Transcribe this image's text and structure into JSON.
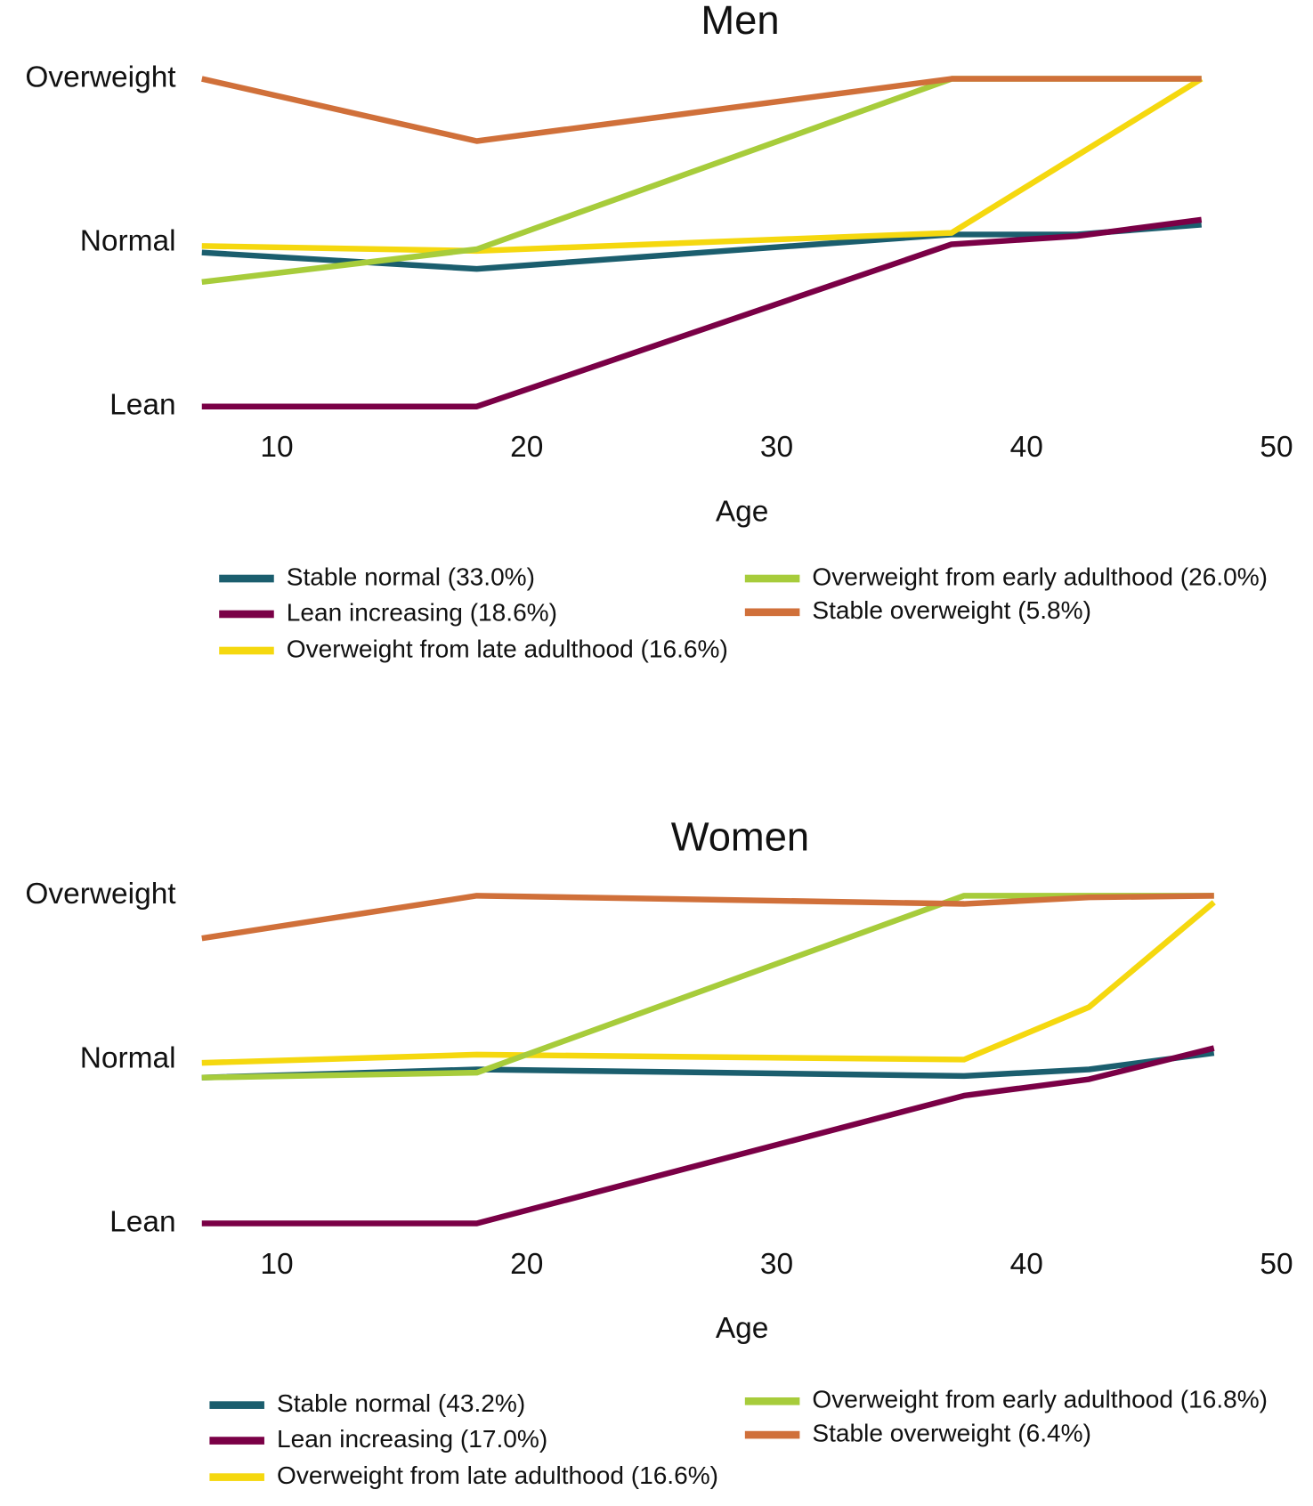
{
  "chart_data": [
    {
      "type": "line",
      "title": "Men",
      "x_label": "Age",
      "x": [
        7,
        18,
        37,
        42,
        47
      ],
      "xlim": [
        7,
        50
      ],
      "xticks": [
        10,
        20,
        30,
        40,
        50
      ],
      "ylim": [
        1,
        3
      ],
      "yticks": [
        {
          "value": 1,
          "label": "Lean"
        },
        {
          "value": 2,
          "label": "Normal"
        },
        {
          "value": 3,
          "label": "Overweight"
        }
      ],
      "series": [
        {
          "name": "Stable normal (33.0%)",
          "color": "#1b5e6e",
          "values": [
            1.94,
            1.84,
            2.05,
            2.05,
            2.11
          ]
        },
        {
          "name": "Lean increasing (18.6%)",
          "color": "#7a0046",
          "values": [
            1,
            1,
            1.99,
            2.04,
            2.14
          ]
        },
        {
          "name": "Overweight from late adulthood (16.6%)",
          "color": "#f5d80f",
          "values": [
            1.98,
            1.95,
            2.06,
            2.53,
            3
          ]
        },
        {
          "name": "Overweight from early adulthood (26.0%)",
          "color": "#a7cc3b",
          "values": [
            1.76,
            1.96,
            3,
            3,
            3
          ]
        },
        {
          "name": "Stable overweight (5.8%)",
          "color": "#d0703a",
          "values": [
            3,
            2.62,
            3,
            3,
            3
          ]
        }
      ]
    },
    {
      "type": "line",
      "title": "Women",
      "x_label": "Age",
      "x": [
        7,
        18,
        37.5,
        42.5,
        47.5
      ],
      "xlim": [
        7,
        50
      ],
      "xticks": [
        10,
        20,
        30,
        40,
        50
      ],
      "ylim": [
        1,
        3
      ],
      "yticks": [
        {
          "value": 1,
          "label": "Lean"
        },
        {
          "value": 2,
          "label": "Normal"
        },
        {
          "value": 3,
          "label": "Overweight"
        }
      ],
      "series": [
        {
          "name": "Stable normal (43.2%)",
          "color": "#1b5e6e",
          "values": [
            1.89,
            1.94,
            1.9,
            1.94,
            2.04
          ]
        },
        {
          "name": "Lean increasing (17.0%)",
          "color": "#7a0046",
          "values": [
            1,
            1,
            1.78,
            1.88,
            2.07
          ]
        },
        {
          "name": "Overweight from late adulthood (16.6%)",
          "color": "#f5d80f",
          "values": [
            1.98,
            2.03,
            2.0,
            2.32,
            2.96
          ]
        },
        {
          "name": "Overweight from early adulthood (16.8%)",
          "color": "#a7cc3b",
          "values": [
            1.89,
            1.92,
            3,
            3,
            3
          ]
        },
        {
          "name": "Stable overweight (6.4%)",
          "color": "#d0703a",
          "values": [
            2.74,
            3,
            2.95,
            2.99,
            3
          ]
        }
      ]
    }
  ]
}
